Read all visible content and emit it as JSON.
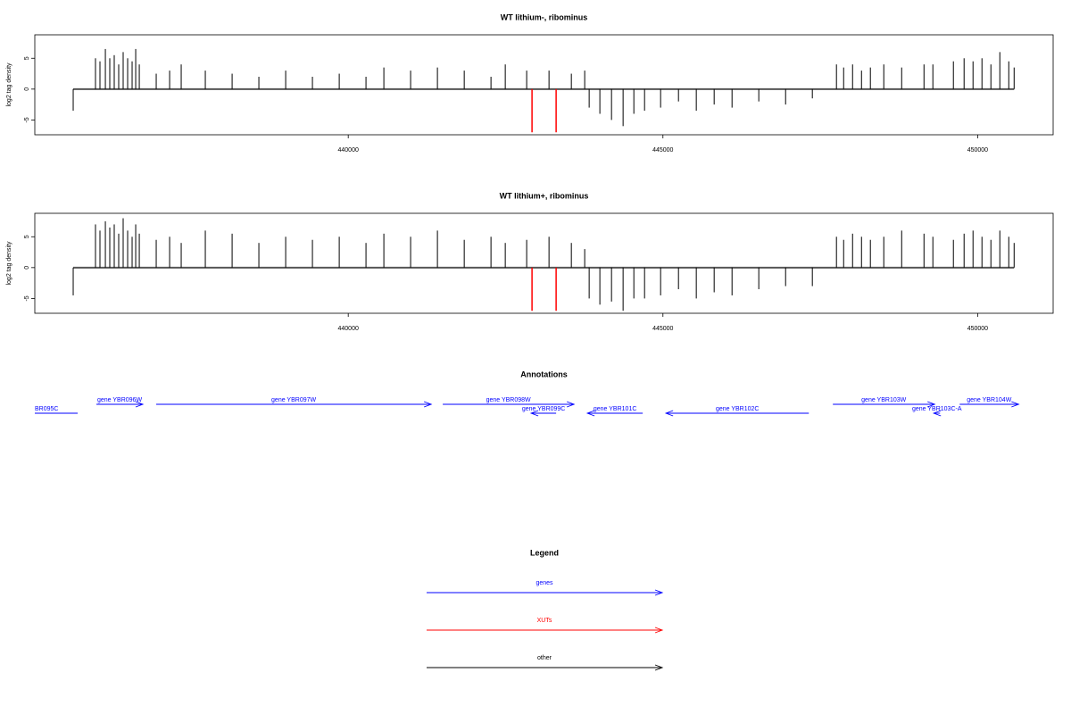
{
  "chart_data": [
    {
      "type": "spikes",
      "title": "WT lithium-, ribominus",
      "ylabel": "log2 tag density",
      "xlim": [
        435020,
        451200
      ],
      "xticks": [
        440000,
        445000,
        450000
      ],
      "ylim": [
        -7.4,
        8.8
      ],
      "yticks": [
        -5,
        0,
        5
      ],
      "series": [
        {
          "name": "other",
          "color": "#000000",
          "x": [
            435630,
            435984,
            436055,
            436141,
            436211,
            436282,
            436353,
            436424,
            436495,
            436566,
            436623,
            436680,
            436949,
            437162,
            437346,
            437729,
            438155,
            438580,
            439006,
            439431,
            439857,
            440282,
            440566,
            440991,
            441417,
            441843,
            442268,
            442495,
            442835,
            443190,
            443545,
            443757,
            443828,
            443998,
            444183,
            444367,
            444538,
            444708,
            444963,
            445247,
            445530,
            445814,
            446098,
            446523,
            446949,
            447374,
            447757,
            447871,
            448013,
            448155,
            448296,
            448509,
            448793,
            449148,
            449289,
            449615,
            449785,
            449927,
            450069,
            450211,
            450353,
            450495,
            450580
          ],
          "values": [
            -3.5,
            5,
            4.5,
            6.5,
            5,
            5.5,
            4,
            6,
            5,
            4.5,
            6.5,
            4,
            2.5,
            3,
            4,
            3,
            2.5,
            2,
            3,
            2,
            2.5,
            2,
            3.5,
            3,
            3.5,
            3,
            2,
            4,
            3,
            3,
            2.5,
            3,
            -3,
            -4,
            -5,
            -6,
            -4,
            -3.5,
            -3,
            -2,
            -3.5,
            -2.5,
            -3,
            -2,
            -2.5,
            -1.5,
            4,
            3.5,
            4,
            3,
            3.5,
            4,
            3.5,
            4,
            4,
            4.5,
            5,
            4.5,
            5,
            4,
            6,
            4.5,
            3.5
          ]
        },
        {
          "name": "XUTs",
          "color": "#ff0000",
          "x": [
            442920,
            443303
          ],
          "values": [
            -7,
            -7
          ]
        }
      ]
    },
    {
      "type": "spikes",
      "title": "WT lithium+, ribominus",
      "ylabel": "log2 tag density",
      "xlim": [
        435020,
        451200
      ],
      "xticks": [
        440000,
        445000,
        450000
      ],
      "ylim": [
        -7.4,
        8.8
      ],
      "yticks": [
        -5,
        0,
        5
      ],
      "series": [
        {
          "name": "other",
          "color": "#000000",
          "x": [
            435630,
            435984,
            436055,
            436141,
            436211,
            436282,
            436353,
            436424,
            436495,
            436566,
            436623,
            436680,
            436949,
            437162,
            437346,
            437729,
            438155,
            438580,
            439006,
            439431,
            439857,
            440282,
            440566,
            440991,
            441417,
            441843,
            442268,
            442495,
            442835,
            443190,
            443545,
            443757,
            443828,
            443998,
            444183,
            444367,
            444538,
            444708,
            444963,
            445247,
            445530,
            445814,
            446098,
            446523,
            446949,
            447374,
            447757,
            447871,
            448013,
            448155,
            448296,
            448509,
            448793,
            449148,
            449289,
            449615,
            449785,
            449927,
            450069,
            450211,
            450353,
            450495,
            450580
          ],
          "values": [
            -4.5,
            7,
            6,
            7.5,
            6.5,
            7,
            5.5,
            8,
            6,
            5,
            7,
            5.5,
            4.5,
            5,
            4,
            6,
            5.5,
            4,
            5,
            4.5,
            5,
            4,
            5.5,
            5,
            6,
            4.5,
            5,
            4,
            4.5,
            5,
            4,
            3,
            -5,
            -6,
            -5.5,
            -7,
            -5,
            -5,
            -4.5,
            -3.5,
            -5,
            -4,
            -4.5,
            -3.5,
            -3,
            -3,
            5,
            4.5,
            5.5,
            5,
            4.5,
            5,
            6,
            5.5,
            5,
            4.5,
            5.5,
            6,
            5,
            4.5,
            6,
            5,
            4
          ]
        },
        {
          "name": "XUTs",
          "color": "#ff0000",
          "x": [
            442920,
            443303
          ],
          "values": [
            -7,
            -7
          ]
        }
      ]
    }
  ],
  "annotations": {
    "title": "Annotations",
    "color": "#0000ff",
    "genes": [
      {
        "label": "BR095C",
        "start": 435020,
        "end": 435701,
        "strand": "-"
      },
      {
        "label": "gene YBR096W",
        "start": 435999,
        "end": 436736,
        "strand": "+"
      },
      {
        "label": "gene YBR097W",
        "start": 436949,
        "end": 441318,
        "strand": "+"
      },
      {
        "label": "gene YBR098W",
        "start": 441502,
        "end": 443587,
        "strand": "+"
      },
      {
        "label": "gene YBR099C",
        "start": 442906,
        "end": 443303,
        "strand": "-"
      },
      {
        "label": "gene YBR101C",
        "start": 443800,
        "end": 444679,
        "strand": "-"
      },
      {
        "label": "gene YBR102C",
        "start": 445048,
        "end": 447318,
        "strand": "-"
      },
      {
        "label": "gene YBR103W",
        "start": 447700,
        "end": 449317,
        "strand": "+"
      },
      {
        "label": "gene YBR103C-A",
        "start": 449303,
        "end": 449403,
        "strand": "-"
      },
      {
        "label": "gene YBR104W",
        "start": 449715,
        "end": 450651,
        "strand": "+"
      }
    ]
  },
  "legend": {
    "title": "Legend",
    "items": [
      {
        "label": "genes",
        "color": "#0000ff"
      },
      {
        "label": "XUTs",
        "color": "#ff0000"
      },
      {
        "label": "other",
        "color": "#000000"
      }
    ]
  }
}
